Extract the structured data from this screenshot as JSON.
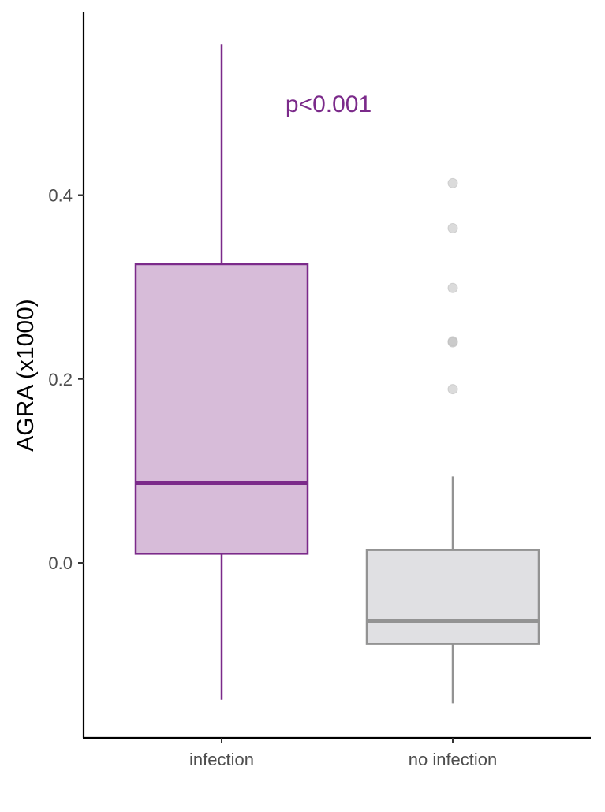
{
  "chart_data": {
    "type": "boxplot",
    "title": "",
    "xlabel": "",
    "ylabel": "AGRA (x1000)",
    "ylim": [
      -0.185,
      0.6
    ],
    "yticks": [
      0.0,
      0.2,
      0.4
    ],
    "ytick_labels": [
      "0.0",
      "0.2",
      "0.4"
    ],
    "grid": false,
    "legend": "none",
    "categories": [
      "infection",
      "no infection"
    ],
    "boxes": [
      {
        "category": "infection",
        "whisker_low": -0.149,
        "q1": 0.01,
        "median": 0.087,
        "q3": 0.325,
        "whisker_high": 0.564,
        "outliers": [],
        "stroke": "#7b2a8a",
        "fill": "#d7bcd9"
      },
      {
        "category": "no infection",
        "whisker_low": -0.153,
        "q1": -0.088,
        "median": -0.063,
        "q3": 0.014,
        "whisker_high": 0.094,
        "outliers": [
          0.189,
          0.24,
          0.241,
          0.299,
          0.364,
          0.413
        ],
        "stroke": "#939393",
        "fill": "#e0e0e3"
      }
    ],
    "annotation": {
      "text": "p<0.001",
      "x": 1.5,
      "y": 0.5,
      "color": "#7b2a8a"
    }
  }
}
